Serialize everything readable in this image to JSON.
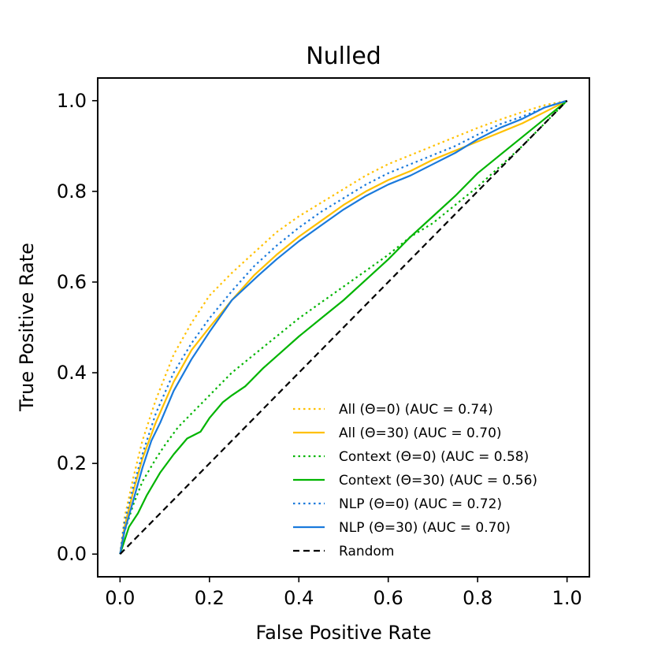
{
  "chart_data": {
    "type": "line",
    "title": "Nulled",
    "xlabel": "False Positive Rate",
    "ylabel": "True Positive Rate",
    "xlim": [
      -0.05,
      1.05
    ],
    "ylim": [
      -0.05,
      1.05
    ],
    "xticks": [
      0.0,
      0.2,
      0.4,
      0.6,
      0.8,
      1.0
    ],
    "yticks": [
      0.0,
      0.2,
      0.4,
      0.6,
      0.8,
      1.0
    ],
    "xtick_labels": [
      "0.0",
      "0.2",
      "0.4",
      "0.6",
      "0.8",
      "1.0"
    ],
    "ytick_labels": [
      "0.0",
      "0.2",
      "0.4",
      "0.6",
      "0.8",
      "1.0"
    ],
    "grid": false,
    "legend_position": "lower-right",
    "series": [
      {
        "name": "All (Θ=0) (AUC = 0.74)",
        "color": "#ffc000",
        "style": "dotted",
        "x": [
          0,
          0.01,
          0.03,
          0.05,
          0.08,
          0.12,
          0.16,
          0.2,
          0.25,
          0.3,
          0.35,
          0.4,
          0.45,
          0.5,
          0.55,
          0.6,
          0.65,
          0.7,
          0.75,
          0.8,
          0.85,
          0.9,
          0.95,
          1.0
        ],
        "y": [
          0,
          0.08,
          0.17,
          0.25,
          0.34,
          0.44,
          0.51,
          0.57,
          0.62,
          0.665,
          0.71,
          0.745,
          0.775,
          0.805,
          0.835,
          0.86,
          0.88,
          0.9,
          0.92,
          0.94,
          0.958,
          0.975,
          0.99,
          1.0
        ]
      },
      {
        "name": "All (Θ=30) (AUC = 0.70)",
        "color": "#ffc000",
        "style": "solid",
        "x": [
          0,
          0.01,
          0.03,
          0.05,
          0.08,
          0.12,
          0.16,
          0.2,
          0.25,
          0.3,
          0.35,
          0.4,
          0.45,
          0.5,
          0.55,
          0.6,
          0.65,
          0.7,
          0.75,
          0.8,
          0.85,
          0.9,
          0.95,
          1.0
        ],
        "y": [
          0,
          0.06,
          0.14,
          0.21,
          0.29,
          0.38,
          0.45,
          0.5,
          0.56,
          0.615,
          0.66,
          0.7,
          0.735,
          0.77,
          0.8,
          0.825,
          0.845,
          0.87,
          0.89,
          0.91,
          0.93,
          0.95,
          0.975,
          1.0
        ]
      },
      {
        "name": "Context (Θ=0) (AUC = 0.58)",
        "color": "#00b400",
        "style": "dotted",
        "x": [
          0,
          0.01,
          0.03,
          0.05,
          0.08,
          0.1,
          0.13,
          0.16,
          0.2,
          0.25,
          0.3,
          0.35,
          0.4,
          0.45,
          0.5,
          0.55,
          0.6,
          0.65,
          0.7,
          0.75,
          0.8,
          0.85,
          0.9,
          0.95,
          1.0
        ],
        "y": [
          0,
          0.05,
          0.11,
          0.16,
          0.21,
          0.24,
          0.28,
          0.31,
          0.35,
          0.4,
          0.44,
          0.48,
          0.52,
          0.555,
          0.59,
          0.625,
          0.66,
          0.7,
          0.73,
          0.77,
          0.81,
          0.855,
          0.9,
          0.95,
          1.0
        ]
      },
      {
        "name": "Context (Θ=30) (AUC = 0.56)",
        "color": "#00b400",
        "style": "solid",
        "x": [
          0,
          0.01,
          0.02,
          0.04,
          0.06,
          0.09,
          0.12,
          0.15,
          0.18,
          0.2,
          0.23,
          0.25,
          0.28,
          0.29,
          0.32,
          0.36,
          0.4,
          0.45,
          0.5,
          0.55,
          0.6,
          0.65,
          0.7,
          0.75,
          0.8,
          0.85,
          0.9,
          0.95,
          1.0
        ],
        "y": [
          0,
          0.03,
          0.06,
          0.09,
          0.13,
          0.18,
          0.22,
          0.255,
          0.27,
          0.3,
          0.335,
          0.35,
          0.37,
          0.38,
          0.41,
          0.445,
          0.48,
          0.52,
          0.56,
          0.605,
          0.65,
          0.7,
          0.745,
          0.79,
          0.84,
          0.88,
          0.92,
          0.96,
          1.0
        ]
      },
      {
        "name": "NLP (Θ=0) (AUC = 0.72)",
        "color": "#1a7adc",
        "style": "dotted",
        "x": [
          0,
          0.01,
          0.03,
          0.05,
          0.08,
          0.12,
          0.16,
          0.2,
          0.25,
          0.3,
          0.35,
          0.4,
          0.45,
          0.5,
          0.55,
          0.6,
          0.65,
          0.7,
          0.75,
          0.8,
          0.85,
          0.9,
          0.95,
          1.0
        ],
        "y": [
          0,
          0.07,
          0.15,
          0.22,
          0.31,
          0.4,
          0.465,
          0.52,
          0.58,
          0.635,
          0.68,
          0.72,
          0.755,
          0.785,
          0.815,
          0.84,
          0.86,
          0.88,
          0.9,
          0.925,
          0.948,
          0.965,
          0.985,
          1.0
        ]
      },
      {
        "name": "NLP (Θ=30) (AUC = 0.70)",
        "color": "#1a7adc",
        "style": "solid",
        "x": [
          0,
          0.01,
          0.03,
          0.05,
          0.07,
          0.09,
          0.12,
          0.16,
          0.2,
          0.25,
          0.31,
          0.35,
          0.4,
          0.45,
          0.5,
          0.55,
          0.6,
          0.65,
          0.7,
          0.75,
          0.8,
          0.85,
          0.9,
          0.95,
          1.0
        ],
        "y": [
          0,
          0.05,
          0.12,
          0.19,
          0.25,
          0.29,
          0.36,
          0.43,
          0.49,
          0.56,
          0.615,
          0.65,
          0.69,
          0.725,
          0.76,
          0.79,
          0.815,
          0.835,
          0.86,
          0.885,
          0.915,
          0.94,
          0.96,
          0.985,
          1.0
        ]
      },
      {
        "name": "Random",
        "color": "#000000",
        "style": "dashed",
        "x": [
          0,
          1
        ],
        "y": [
          0,
          1
        ]
      }
    ]
  }
}
